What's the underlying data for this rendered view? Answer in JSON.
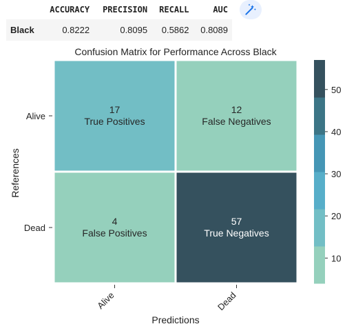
{
  "metrics_table": {
    "headers": [
      "",
      "ACCURACY",
      "PRECISION",
      "RECALL",
      "AUC"
    ],
    "rows": [
      {
        "label": "Black",
        "values": [
          "0.8222",
          "0.8095",
          "0.5862",
          "0.8089"
        ]
      }
    ]
  },
  "toolbar": {
    "icon": "magic-wand-icon"
  },
  "chart_data": {
    "type": "heatmap",
    "title": "Confusion Matrix for Performance Across Black",
    "xlabel": "Predictions",
    "ylabel": "References",
    "x_categories": [
      "Alive",
      "Dead"
    ],
    "y_categories": [
      "Alive",
      "Dead"
    ],
    "cells": [
      [
        {
          "value": 17,
          "label": "True Positives"
        },
        {
          "value": 12,
          "label": "False Negatives"
        }
      ],
      [
        {
          "value": 4,
          "label": "False Positives"
        },
        {
          "value": 57,
          "label": "True Negatives"
        }
      ]
    ],
    "colorbar": {
      "range": [
        4,
        57
      ],
      "ticks": [
        10,
        20,
        30,
        40,
        50
      ],
      "colors": [
        "#95d0bc",
        "#72bec5",
        "#57aec9",
        "#4596b5",
        "#3c7586",
        "#35515e"
      ]
    }
  }
}
